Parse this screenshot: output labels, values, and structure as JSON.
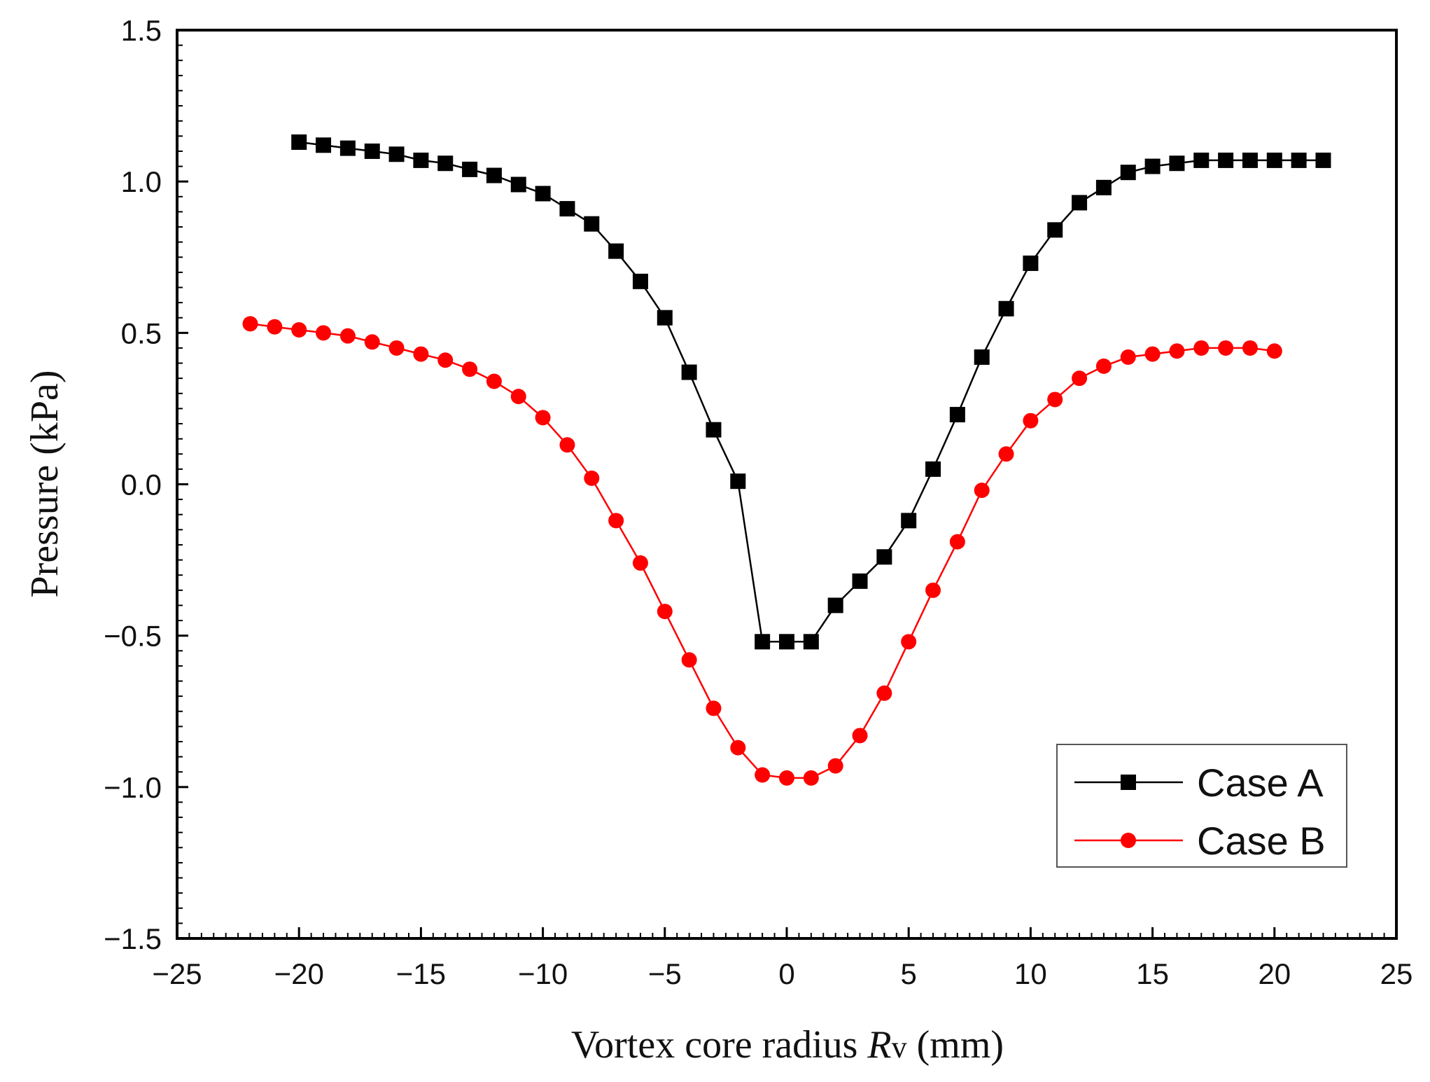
{
  "chart_data": {
    "type": "line",
    "title": "",
    "xlabel_main": "Vortex core radius ",
    "xlabel_symbol": "R",
    "xlabel_subscript": "v",
    "xlabel_unit": " (mm)",
    "ylabel": "Pressure (kPa)",
    "xlim": [
      -25,
      25
    ],
    "ylim": [
      -1.5,
      1.5
    ],
    "xticks": [
      -25,
      -20,
      -15,
      -10,
      -5,
      0,
      5,
      10,
      15,
      20,
      25
    ],
    "xtick_labels": [
      "−25",
      "−20",
      "−15",
      "−10",
      "−5",
      "0",
      "5",
      "10",
      "15",
      "20",
      "25"
    ],
    "yticks": [
      -1.5,
      -1.0,
      -0.5,
      0.0,
      0.5,
      1.0,
      1.5
    ],
    "ytick_labels": [
      "−1.5",
      "−1.0",
      "−0.5",
      "0.0",
      "0.5",
      "1.0",
      "1.5"
    ],
    "grid": false,
    "legend_position": "bottom-right",
    "series": [
      {
        "name": "Case A",
        "color": "#000000",
        "marker": "square",
        "x": [
          -20,
          -19,
          -18,
          -17,
          -16,
          -15,
          -14,
          -13,
          -12,
          -11,
          -10,
          -9,
          -8,
          -7,
          -6,
          -5,
          -4,
          -3,
          -2,
          -1,
          0,
          1,
          2,
          3,
          4,
          5,
          6,
          7,
          8,
          9,
          10,
          11,
          12,
          13,
          14,
          15,
          16,
          17,
          18,
          19,
          20,
          21,
          22
        ],
        "y": [
          1.13,
          1.12,
          1.11,
          1.1,
          1.09,
          1.07,
          1.06,
          1.04,
          1.02,
          0.99,
          0.96,
          0.91,
          0.86,
          0.77,
          0.67,
          0.55,
          0.37,
          0.18,
          0.01,
          -0.52,
          -0.52,
          -0.52,
          -0.4,
          -0.32,
          -0.24,
          -0.12,
          0.05,
          0.23,
          0.42,
          0.58,
          0.73,
          0.84,
          0.93,
          0.98,
          1.03,
          1.05,
          1.06,
          1.07,
          1.07,
          1.07,
          1.07,
          1.07,
          1.07
        ]
      },
      {
        "name": "Case B",
        "color": "#ff0000",
        "marker": "circle",
        "x": [
          -22,
          -21,
          -20,
          -19,
          -18,
          -17,
          -16,
          -15,
          -14,
          -13,
          -12,
          -11,
          -10,
          -9,
          -8,
          -7,
          -6,
          -5,
          -4,
          -3,
          -2,
          -1,
          0,
          1,
          2,
          3,
          4,
          5,
          6,
          7,
          8,
          9,
          10,
          11,
          12,
          13,
          14,
          15,
          16,
          17,
          18,
          19,
          20
        ],
        "y": [
          0.53,
          0.52,
          0.51,
          0.5,
          0.49,
          0.47,
          0.45,
          0.43,
          0.41,
          0.38,
          0.34,
          0.29,
          0.22,
          0.13,
          0.02,
          -0.12,
          -0.26,
          -0.42,
          -0.58,
          -0.74,
          -0.87,
          -0.96,
          -0.97,
          -0.97,
          -0.93,
          -0.83,
          -0.69,
          -0.52,
          -0.35,
          -0.19,
          -0.02,
          0.1,
          0.21,
          0.28,
          0.35,
          0.39,
          0.42,
          0.43,
          0.44,
          0.45,
          0.45,
          0.45,
          0.44
        ]
      }
    ]
  }
}
